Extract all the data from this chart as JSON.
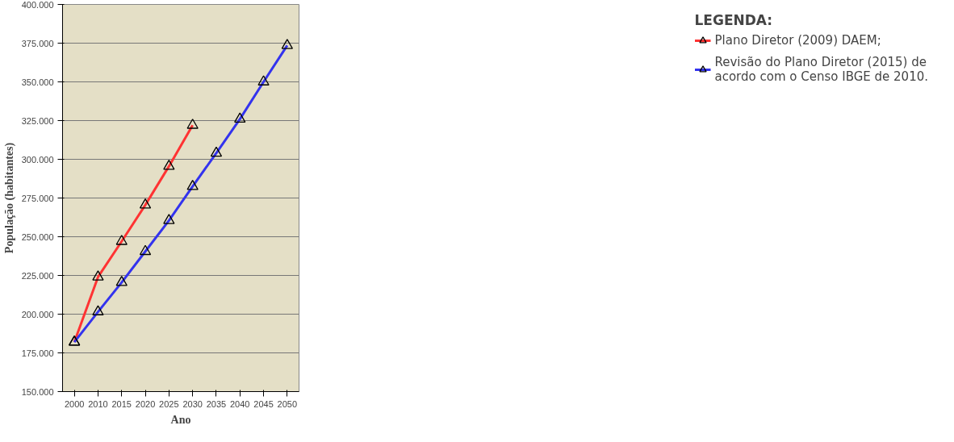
{
  "chart_data": {
    "type": "line",
    "xlabel": "Ano",
    "ylabel": "População (habitantes)",
    "legend_title": "LEGENDA:",
    "categories": [
      "2000",
      "2010",
      "2015",
      "2020",
      "2025",
      "2030",
      "2035",
      "2040",
      "2045",
      "2050"
    ],
    "series": [
      {
        "name": "Plano Diretor (2009) DAEM;",
        "color": "#ff3333",
        "values": [
          182000,
          224000,
          247000,
          270500,
          295500,
          322000,
          null,
          null,
          null,
          null
        ]
      },
      {
        "name": "Revisão do Plano Diretor (2015) de acordo com o Censo IBGE de 2010.",
        "color": "#3333ee",
        "values": [
          182000,
          201500,
          220500,
          240500,
          260500,
          282500,
          304000,
          326000,
          350000,
          373500
        ]
      }
    ],
    "ylim": [
      150000,
      400000
    ],
    "yticks": [
      {
        "value": 150000,
        "label": "150.000"
      },
      {
        "value": 175000,
        "label": "175.000"
      },
      {
        "value": 200000,
        "label": "200.000"
      },
      {
        "value": 225000,
        "label": "225.000"
      },
      {
        "value": 250000,
        "label": "250.000"
      },
      {
        "value": 275000,
        "label": "275.000"
      },
      {
        "value": 300000,
        "label": "300.000"
      },
      {
        "value": 325000,
        "label": "325.000"
      },
      {
        "value": 350000,
        "label": "350.000"
      },
      {
        "value": 375000,
        "label": "375.000"
      },
      {
        "value": 400000,
        "label": "400.000"
      }
    ],
    "grid": "y",
    "legend": "right",
    "marker": "triangle",
    "line_style": "solid"
  }
}
